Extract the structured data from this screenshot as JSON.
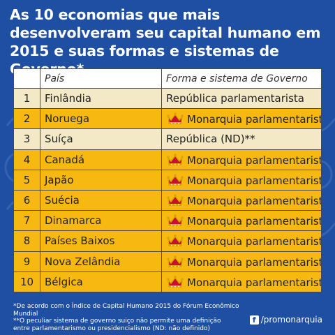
{
  "title": "As 10 economias que mais desenvolveram seu capital humano em 2015 e suas formas e sistemas de Governo*",
  "table": {
    "headers": [
      "",
      "País",
      "Forma e sistema de Governo"
    ],
    "rows": [
      {
        "rank": "1",
        "country": "Finlândia",
        "government": "República parlamentarista",
        "crown": false
      },
      {
        "rank": "2",
        "country": "Noruega",
        "government": "Monarquia parlamentarista",
        "crown": true
      },
      {
        "rank": "3",
        "country": "Suíça",
        "government": "República (ND)**",
        "crown": false
      },
      {
        "rank": "4",
        "country": "Canadá",
        "government": "Monarquia parlamentarista",
        "crown": true
      },
      {
        "rank": "5",
        "country": "Japão",
        "government": "Monarquia parlamentarista",
        "crown": true
      },
      {
        "rank": "6",
        "country": "Suécia",
        "government": "Monarquia parlamentarista",
        "crown": true
      },
      {
        "rank": "7",
        "country": "Dinamarca",
        "government": "Monarquia parlamentarista",
        "crown": true
      },
      {
        "rank": "8",
        "country": "Países Baixos",
        "government": "Monarquia parlamentarista",
        "crown": true
      },
      {
        "rank": "9",
        "country": "Nova Zelândia",
        "government": "Monarquia parlamentarista",
        "crown": true
      },
      {
        "rank": "10",
        "country": "Bélgica",
        "government": "Monarquia parlamentarista",
        "crown": true
      }
    ]
  },
  "footnotes": {
    "line1": "*De acordo com o Índice de Capital Humano 2015 do Fórum Econômico Mundial",
    "line2": "**O peculiar sistema de governo suiço não permite uma definição",
    "line3": "entre parlamentarismo ou presidencialismo (ND: não definido)"
  },
  "brand": {
    "fb_glyph": "f",
    "handle": "/promonarquia"
  },
  "colors": {
    "background": "#1f4fa3",
    "row_light": "#f4e9c6",
    "row_gold": "#f7b812",
    "crown_red": "#c8102e",
    "crown_gold": "#d9a400"
  },
  "icons": {
    "crown": "crown-icon",
    "facebook": "facebook-icon"
  }
}
